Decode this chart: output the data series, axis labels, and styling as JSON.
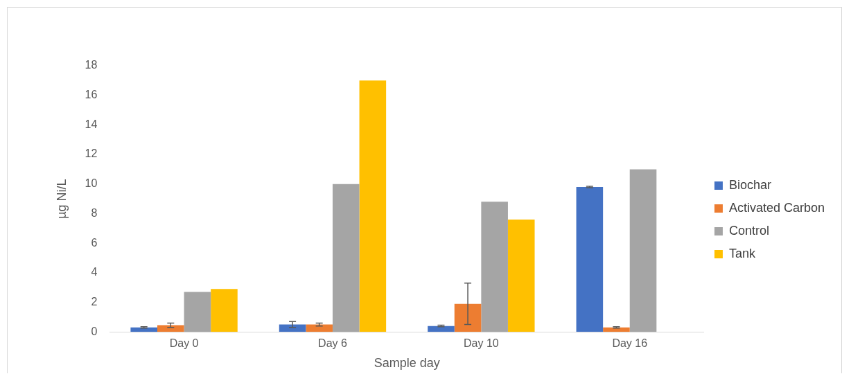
{
  "chart_data": {
    "type": "bar",
    "xlabel": "Sample day",
    "ylabel": "µg Ni/L",
    "categories": [
      "Day 0",
      "Day 6",
      "Day 10",
      "Day 16"
    ],
    "series": [
      {
        "name": "Biochar",
        "color": "#4472c4",
        "values": [
          0.3,
          0.5,
          0.4,
          9.8
        ],
        "errors": [
          0.05,
          0.2,
          0.05,
          0.05
        ]
      },
      {
        "name": "Activated Carbon",
        "color": "#ed7d31",
        "values": [
          0.45,
          0.5,
          1.9,
          0.3
        ],
        "errors": [
          0.15,
          0.1,
          1.4,
          0.05
        ]
      },
      {
        "name": "Control",
        "color": "#a5a5a5",
        "values": [
          2.7,
          10,
          8.8,
          11
        ]
      },
      {
        "name": "Tank",
        "color": "#ffc000",
        "values": [
          2.9,
          17,
          7.6,
          null
        ]
      }
    ],
    "ylim": [
      0,
      18
    ],
    "yticks": [
      0,
      2,
      4,
      6,
      8,
      10,
      12,
      14,
      16,
      18
    ],
    "grid": false,
    "legend": "right"
  }
}
